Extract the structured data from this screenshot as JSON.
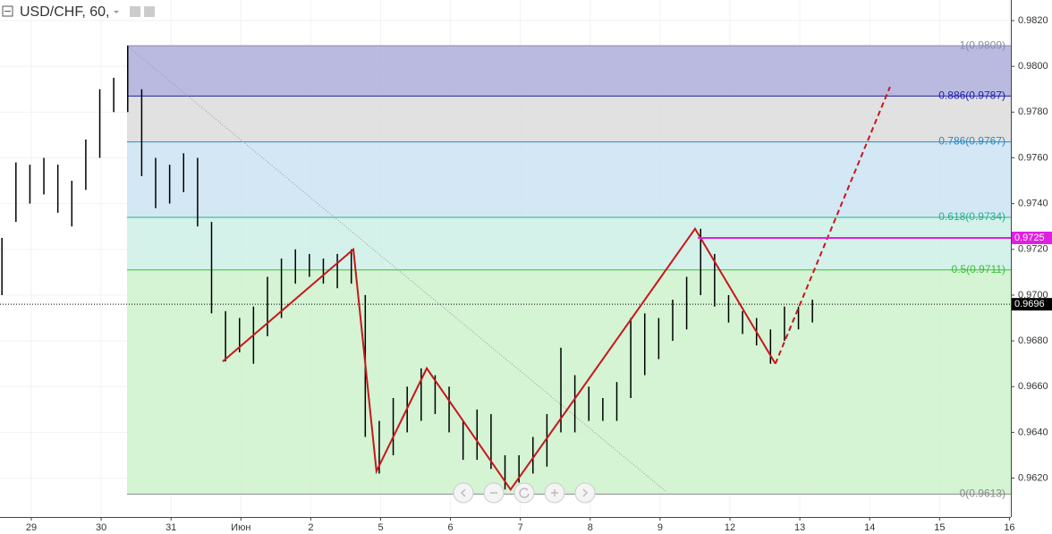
{
  "chart_data": {
    "type": "ohlc",
    "title": "USD/CHF, 60,",
    "xlim": [
      -0.448,
      14.02
    ],
    "ylim": [
      0.9603,
      0.9829
    ],
    "grid": true,
    "xticks": [
      {
        "value": 0,
        "label": "29"
      },
      {
        "value": 1,
        "label": "30"
      },
      {
        "value": 2,
        "label": "31"
      },
      {
        "value": 3,
        "label": "Июн"
      },
      {
        "value": 4,
        "label": "2"
      },
      {
        "value": 5,
        "label": "5"
      },
      {
        "value": 6,
        "label": "6"
      },
      {
        "value": 7,
        "label": "7"
      },
      {
        "value": 8,
        "label": "8"
      },
      {
        "value": 9,
        "label": "9"
      },
      {
        "value": 10,
        "label": "12"
      },
      {
        "value": 11,
        "label": "13"
      },
      {
        "value": 12,
        "label": "14"
      },
      {
        "value": 13,
        "label": "15"
      },
      {
        "value": 14,
        "label": "16"
      }
    ],
    "yticks": [
      {
        "value": 0.982,
        "label": "0.9820"
      },
      {
        "value": 0.98,
        "label": "0.9800"
      },
      {
        "value": 0.978,
        "label": "0.9780"
      },
      {
        "value": 0.976,
        "label": "0.9760"
      },
      {
        "value": 0.974,
        "label": "0.9740"
      },
      {
        "value": 0.972,
        "label": "0.9720"
      },
      {
        "value": 0.97,
        "label": "0.9700"
      },
      {
        "value": 0.968,
        "label": "0.9680"
      },
      {
        "value": 0.966,
        "label": "0.9660"
      },
      {
        "value": 0.964,
        "label": "0.9640"
      },
      {
        "value": 0.962,
        "label": "0.9620"
      }
    ],
    "bars": {
      "color": "#000000",
      "x": [
        -0.42,
        -0.22,
        -0.02,
        0.18,
        0.38,
        0.58,
        0.78,
        0.98,
        1.18,
        1.38,
        1.58,
        1.78,
        1.98,
        2.18,
        2.38,
        2.58,
        2.78,
        2.98,
        3.18,
        3.38,
        3.58,
        3.78,
        3.98,
        4.18,
        4.38,
        4.58,
        4.78,
        4.98,
        5.18,
        5.38,
        5.58,
        5.78,
        5.98,
        6.18,
        6.38,
        6.58,
        6.78,
        6.98,
        7.18,
        7.38,
        7.58,
        7.78,
        7.98,
        8.18,
        8.38,
        8.58,
        8.78,
        8.98,
        9.18,
        9.38,
        9.58,
        9.78,
        9.98,
        10.18,
        10.38,
        10.58,
        10.78,
        10.98,
        11.18
      ],
      "high": [
        0.9725,
        0.9758,
        0.9757,
        0.976,
        0.9757,
        0.975,
        0.9768,
        0.979,
        0.9795,
        0.9809,
        0.979,
        0.976,
        0.9757,
        0.9762,
        0.976,
        0.9732,
        0.9693,
        0.969,
        0.9695,
        0.9708,
        0.9716,
        0.972,
        0.9718,
        0.9716,
        0.9718,
        0.972,
        0.97,
        0.9645,
        0.9655,
        0.966,
        0.9668,
        0.9665,
        0.966,
        0.9645,
        0.965,
        0.9648,
        0.963,
        0.963,
        0.9638,
        0.9648,
        0.9677,
        0.9665,
        0.966,
        0.9655,
        0.9662,
        0.969,
        0.9692,
        0.969,
        0.9698,
        0.9708,
        0.9729,
        0.9718,
        0.97,
        0.9693,
        0.969,
        0.9685,
        0.9695,
        0.9695,
        0.9698
      ],
      "low": [
        0.97,
        0.9732,
        0.974,
        0.9744,
        0.9736,
        0.973,
        0.9746,
        0.976,
        0.978,
        0.978,
        0.9752,
        0.9738,
        0.974,
        0.9745,
        0.973,
        0.9692,
        0.9671,
        0.9675,
        0.967,
        0.9682,
        0.969,
        0.9705,
        0.9708,
        0.9705,
        0.9703,
        0.9705,
        0.9638,
        0.9622,
        0.963,
        0.964,
        0.9645,
        0.9648,
        0.964,
        0.9628,
        0.9628,
        0.9624,
        0.9615,
        0.9618,
        0.9622,
        0.9625,
        0.964,
        0.964,
        0.9645,
        0.9645,
        0.9645,
        0.9655,
        0.9665,
        0.9672,
        0.968,
        0.9685,
        0.97,
        0.9695,
        0.9688,
        0.9683,
        0.9678,
        0.967,
        0.968,
        0.9685,
        0.9688
      ]
    },
    "fib": {
      "x_start": 1.37,
      "levels": [
        {
          "value": 0.9809,
          "label": "1(0.9809)",
          "color": "#8a8aa8",
          "fill": "#aeaedc"
        },
        {
          "value": 0.9787,
          "label": "0.886(0.9787)",
          "color": "#2020b0",
          "fill": "#dcdcdc"
        },
        {
          "value": 0.9767,
          "label": "0.786(0.9767)",
          "color": "#2b8ac0",
          "fill": "#cce3f2"
        },
        {
          "value": 0.9734,
          "label": "0.618(0.9734)",
          "color": "#28b088",
          "fill": "#ccf0e6"
        },
        {
          "value": 0.9711,
          "label": "0.5(0.9711)",
          "color": "#38c038",
          "fill": "#cdf2cd"
        },
        {
          "value": 0.9613,
          "label": "0(0.9613)",
          "color": "#8a8a8a"
        }
      ]
    },
    "trendline": {
      "color": "#999999",
      "x": [
        1.37,
        9.09
      ],
      "values": [
        0.9809,
        0.9614
      ]
    },
    "zigzag": {
      "color": "#c8161c",
      "x": [
        2.74,
        4.61,
        4.94,
        5.66,
        6.86,
        9.5,
        10.65
      ],
      "values": [
        0.9671,
        0.972,
        0.9623,
        0.9668,
        0.9615,
        0.9729,
        0.967
      ]
    },
    "projection": {
      "color": "#c8161c",
      "x": [
        10.65,
        12.29
      ],
      "values": [
        0.967,
        0.9791
      ]
    },
    "level_line": {
      "value": 0.9725,
      "x_start": 9.54,
      "color": "#e020e0"
    },
    "price_line": {
      "value": 0.9696,
      "color": "#000000"
    }
  }
}
